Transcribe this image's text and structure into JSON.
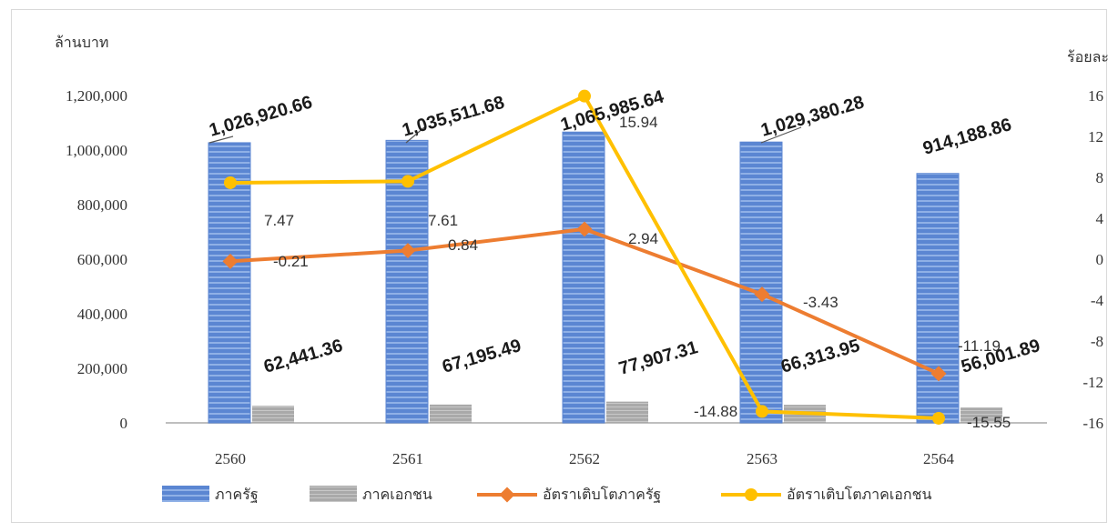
{
  "chart_data": {
    "type": "bar",
    "categories": [
      "2560",
      "2561",
      "2562",
      "2563",
      "2564"
    ],
    "ylabel_left": "ล้านบาท",
    "ylabel_right": "ร้อยละ",
    "ylim_left": [
      0,
      1200000
    ],
    "ylim_right": [
      -16,
      16
    ],
    "yticks_left": [
      "0",
      "200,000",
      "400,000",
      "600,000",
      "800,000",
      "1,000,000",
      "1,200,000"
    ],
    "yticks_right": [
      "-16",
      "-12",
      "-8",
      "-4",
      "0",
      "4",
      "8",
      "12",
      "16"
    ],
    "grid": false,
    "legend_position": "bottom",
    "series": [
      {
        "name": "ภาครัฐ",
        "kind": "bar",
        "axis": "left",
        "color": "#4a78c8",
        "values": [
          1026920.66,
          1035511.68,
          1065985.64,
          1029380.28,
          914188.86
        ],
        "labels": [
          "1,026,920.66",
          "1,035,511.68",
          "1,065,985.64",
          "1,029,380.28",
          "914,188.86"
        ]
      },
      {
        "name": "ภาคเอกชน",
        "kind": "bar",
        "axis": "left",
        "color": "#a6a6a6",
        "values": [
          62441.36,
          67195.49,
          77907.31,
          66313.95,
          56001.89
        ],
        "labels": [
          "62,441.36",
          "67,195.49",
          "77,907.31",
          "66,313.95",
          "56,001.89"
        ]
      },
      {
        "name": "อัตราเติบโตภาครัฐ",
        "kind": "line",
        "axis": "right",
        "color": "#ed7d31",
        "values": [
          -0.21,
          0.84,
          2.94,
          -3.43,
          -11.19
        ],
        "labels": [
          "-0.21",
          "0.84",
          "2.94",
          "-3.43",
          "-11.19"
        ]
      },
      {
        "name": "อัตราเติบโตภาคเอกชน",
        "kind": "line",
        "axis": "right",
        "color": "#ffc000",
        "values": [
          7.47,
          7.61,
          15.94,
          -14.88,
          -15.55
        ],
        "labels": [
          "7.47",
          "7.61",
          "15.94",
          "-14.88",
          "-15.55"
        ]
      }
    ]
  }
}
